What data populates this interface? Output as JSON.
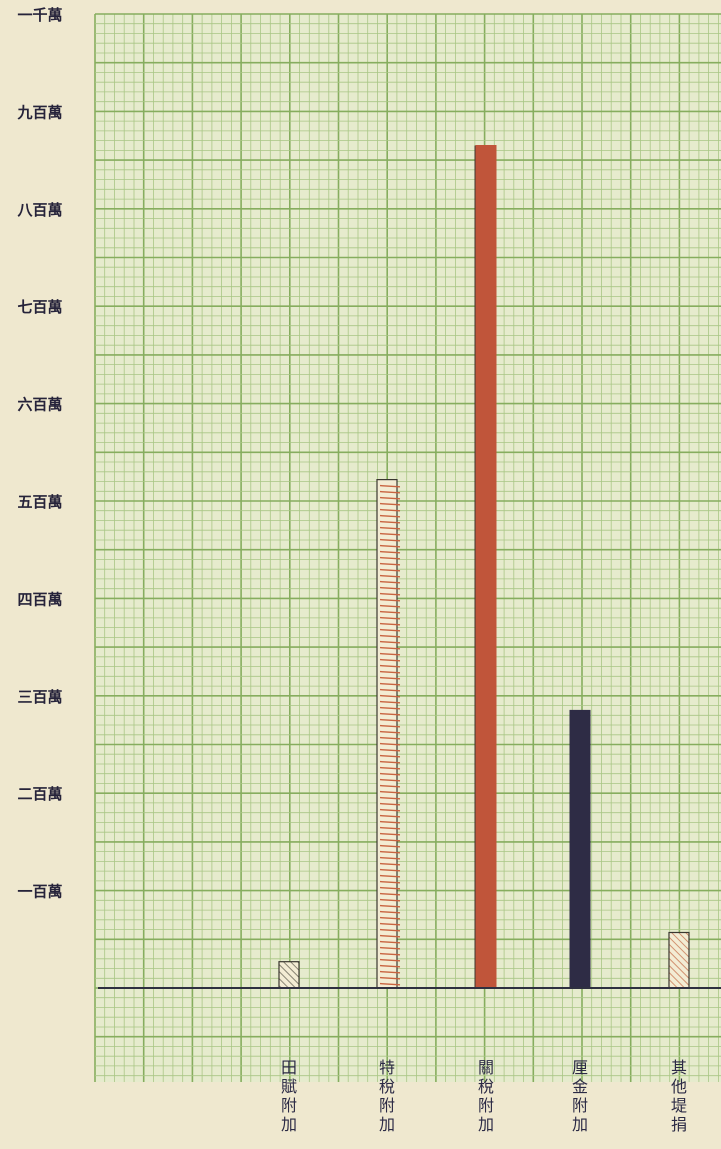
{
  "chart_data": {
    "type": "bar",
    "title": "",
    "xlabel": "",
    "ylabel": "",
    "ylim": [
      0,
      1000
    ],
    "grid": true,
    "y_tick_values": [
      100,
      200,
      300,
      400,
      500,
      600,
      700,
      800,
      900,
      1000
    ],
    "y_tick_labels": [
      "一百萬",
      "二百萬",
      "三百萬",
      "四百萬",
      "五百萬",
      "六百萬",
      "七百萬",
      "八百萬",
      "九百萬",
      "一千萬"
    ],
    "categories": [
      "田賦附加",
      "特稅附加",
      "關稅附加",
      "厘金附加",
      "其他堤捐"
    ],
    "values": [
      27,
      522,
      865,
      285,
      57
    ],
    "bar_styles": [
      "hatched",
      "ruled",
      "solid",
      "solid",
      "hatched"
    ],
    "bar_colors": [
      "#5d5a4c",
      "#c8623f",
      "#c0553a",
      "#2e2c45",
      "#c97a57"
    ]
  }
}
